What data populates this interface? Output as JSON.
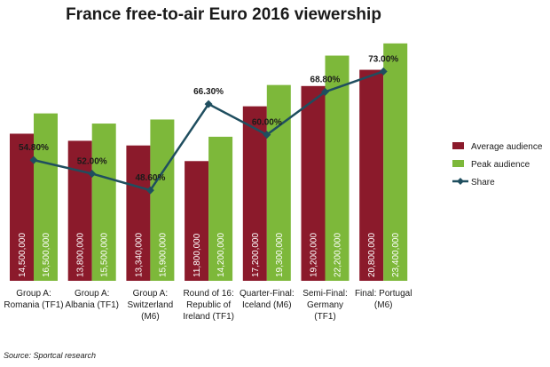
{
  "chart_data": {
    "type": "bar",
    "title": "France free-to-air Euro 2016 viewership",
    "source": "Source: Sportcal research",
    "categories": [
      [
        "Group A:",
        "Romania (TF1)"
      ],
      [
        "Group A:",
        "Albania (TF1)"
      ],
      [
        "Group A:",
        "Switzerland",
        "(M6)"
      ],
      [
        "Round of 16:",
        "Republic of",
        "Ireland (TF1)"
      ],
      [
        "Quarter-Final:",
        "Iceland (M6)"
      ],
      [
        "Semi-Final:",
        "Germany",
        "(TF1)"
      ],
      [
        "Final: Portugal",
        "(M6)"
      ]
    ],
    "series": [
      {
        "name": "Average audience",
        "color": "#8b1a2b",
        "values": [
          14500000,
          13800000,
          13340000,
          11800000,
          17200000,
          19200000,
          20800000
        ],
        "labels": [
          "14,500,000",
          "13,800,000",
          "13,340,000",
          "11,800,000",
          "17,200,000",
          "19,200,000",
          "20,800,000"
        ]
      },
      {
        "name": "Peak audience",
        "color": "#7db83a",
        "values": [
          16500000,
          15500000,
          15900000,
          14200000,
          19300000,
          22200000,
          23400000
        ],
        "labels": [
          "16,500,000",
          "15,500,000",
          "15,900,000",
          "14,200,000",
          "19,300,000",
          "22,200,000",
          "23,400,000"
        ]
      }
    ],
    "line_series": {
      "name": "Share",
      "color": "#1f4e5f",
      "values": [
        54.8,
        52.0,
        48.6,
        66.3,
        60.0,
        68.8,
        73.0
      ],
      "labels": [
        "54.80%",
        "52.00%",
        "48.60%",
        "66.30%",
        "60.00%",
        "68.80%",
        "73.00%"
      ]
    },
    "ylim": [
      0,
      24000000
    ],
    "line_ylim": [
      0,
      80
    ],
    "grid": false,
    "legend_position": "right"
  }
}
